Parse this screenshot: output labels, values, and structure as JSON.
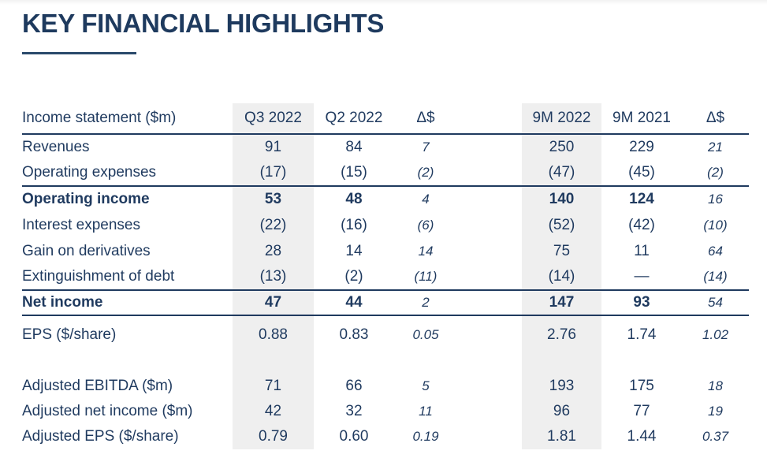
{
  "page": {
    "title": "KEY FINANCIAL HIGHLIGHTS"
  },
  "colors": {
    "text_navy": "#1f3a5f",
    "rule_navy": "#1f3a5f",
    "column_shade_gray": "#efefef",
    "background": "#ffffff"
  },
  "table": {
    "label_header": "Income statement ($m)",
    "columns": [
      "Q3 2022",
      "Q2 2022",
      "Δ$",
      "9M 2022",
      "9M 2021",
      "Δ$"
    ],
    "shaded_columns": [
      "Q3 2022",
      "9M 2022"
    ],
    "rows": [
      {
        "label": "Revenues",
        "values": [
          "91",
          "84",
          "7",
          "250",
          "229",
          "21"
        ]
      },
      {
        "label": "Operating expenses",
        "values": [
          "(17)",
          "(15)",
          "(2)",
          "(47)",
          "(45)",
          "(2)"
        ]
      },
      {
        "label": "Operating income",
        "values": [
          "53",
          "48",
          "4",
          "140",
          "124",
          "16"
        ]
      },
      {
        "label": "Interest expenses",
        "values": [
          "(22)",
          "(16)",
          "(6)",
          "(52)",
          "(42)",
          "(10)"
        ]
      },
      {
        "label": "Gain on derivatives",
        "values": [
          "28",
          "14",
          "14",
          "75",
          "11",
          "64"
        ]
      },
      {
        "label": "Extinguishment of debt",
        "values": [
          "(13)",
          "(2)",
          "(11)",
          "(14)",
          "—",
          "(14)"
        ]
      },
      {
        "label": "Net income",
        "values": [
          "47",
          "44",
          "2",
          "147",
          "93",
          "54"
        ]
      },
      {
        "label": "EPS ($/share)",
        "values": [
          "0.88",
          "0.83",
          "0.05",
          "2.76",
          "1.74",
          "1.02"
        ]
      },
      {
        "label": "Adjusted EBITDA ($m)",
        "values": [
          "71",
          "66",
          "5",
          "193",
          "175",
          "18"
        ]
      },
      {
        "label": "Adjusted net income ($m)",
        "values": [
          "42",
          "32",
          "11",
          "96",
          "77",
          "19"
        ]
      },
      {
        "label": "Adjusted EPS ($/share)",
        "values": [
          "0.79",
          "0.60",
          "0.19",
          "1.81",
          "1.44",
          "0.37"
        ]
      }
    ]
  }
}
